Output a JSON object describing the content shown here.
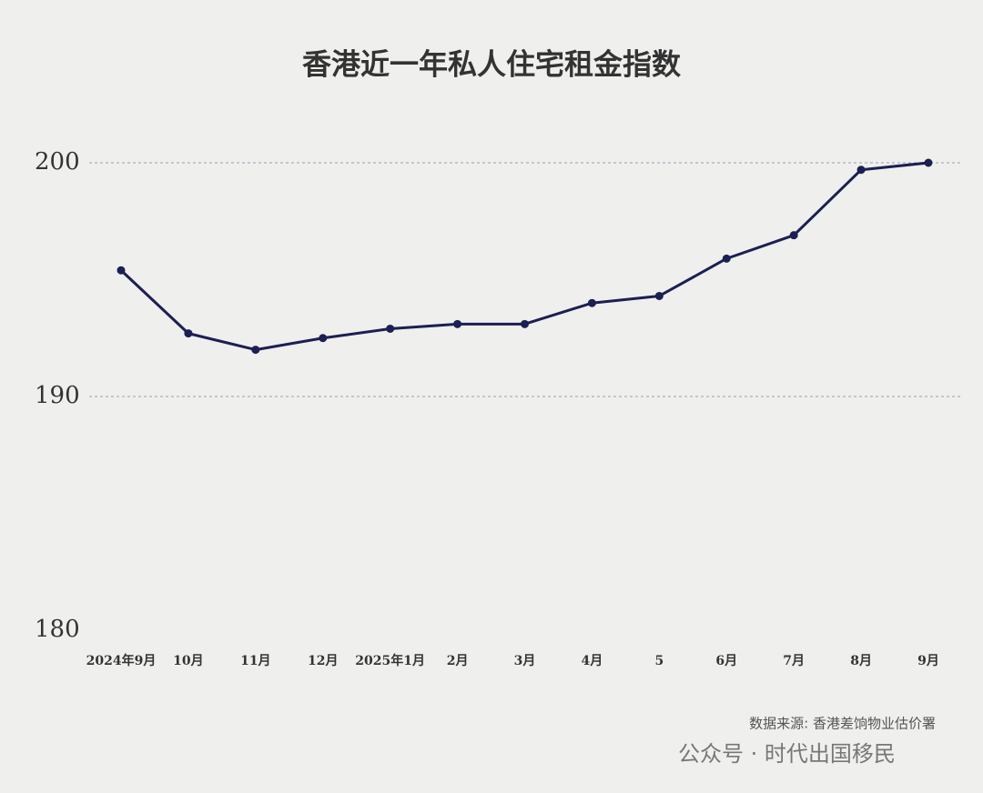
{
  "chart_data": {
    "type": "line",
    "title": "香港近一年私人住宅租金指数",
    "categories": [
      "2024年9月",
      "10月",
      "11月",
      "12月",
      "2025年1月",
      "2月",
      "3月",
      "4月",
      "5",
      "6月",
      "7月",
      "8月",
      "9月"
    ],
    "series": [
      {
        "name": "私人住宅租金指数",
        "color": "#1b1f52",
        "values": [
          195.4,
          192.7,
          192.0,
          192.5,
          192.9,
          193.1,
          193.1,
          194.0,
          194.3,
          195.9,
          196.9,
          199.7,
          200.0
        ]
      }
    ],
    "ylim": [
      180,
      200
    ],
    "yticks": [
      180,
      190,
      200
    ],
    "grid": true,
    "source": "数据来源: 香港差饷物业估价署",
    "watermark": "公众号 · 时代出国移民"
  }
}
